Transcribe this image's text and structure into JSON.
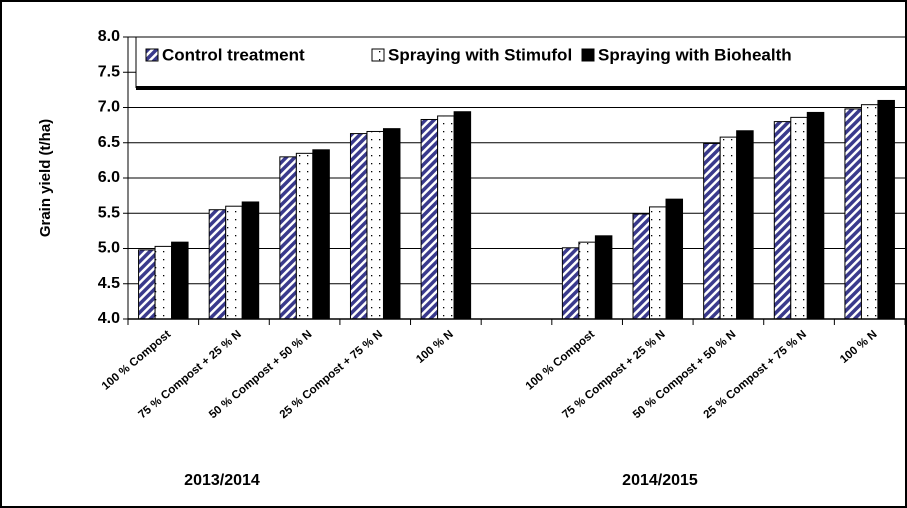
{
  "chart_data": {
    "type": "bar",
    "y_label": "Grain yield (t/ha)",
    "categories": [
      "100 % Compost",
      "75 % Compost + 25 % N",
      "50 % Compost + 50 % N",
      "25 % Compost + 75 % N",
      "100 % N",
      null,
      "100 % Compost",
      "75 % Compost + 25 % N",
      "50 % Compost + 50 % N",
      "25 % Compost + 75 % N",
      "100 % N"
    ],
    "series": [
      {
        "name": "Control treatment",
        "color": "#3a3a8c",
        "pattern": "hatch",
        "values": [
          4.98,
          5.55,
          6.3,
          6.63,
          6.83,
          null,
          5.01,
          5.49,
          6.49,
          6.8,
          6.98
        ]
      },
      {
        "name": "Spraying with Stimufol",
        "color": "#ffffff",
        "pattern": "dots",
        "values": [
          5.03,
          5.6,
          6.35,
          6.66,
          6.88,
          null,
          5.09,
          5.59,
          6.58,
          6.86,
          7.04
        ]
      },
      {
        "name": "Spraying with Biohealth",
        "color": "#000000",
        "pattern": "solid",
        "values": [
          5.09,
          5.66,
          6.4,
          6.7,
          6.94,
          null,
          5.18,
          5.7,
          6.67,
          6.93,
          7.1
        ]
      }
    ],
    "annotations": [
      "2013/2014",
      "2014/2015"
    ],
    "ylim": [
      4.0,
      8.0
    ],
    "yticks": [
      {
        "value": 4.0,
        "label": "4.0"
      },
      {
        "value": 4.5,
        "label": "4.5"
      },
      {
        "value": 5.0,
        "label": "5.0"
      },
      {
        "value": 5.5,
        "label": "5.5"
      },
      {
        "value": 6.0,
        "label": "6.0"
      },
      {
        "value": 6.5,
        "label": "6.5"
      },
      {
        "value": 7.0,
        "label": "7.0"
      },
      {
        "value": 7.5,
        "label": "7.5"
      },
      {
        "value": 8.0,
        "label": "8.0"
      }
    ],
    "grid": true,
    "legend": "top"
  }
}
